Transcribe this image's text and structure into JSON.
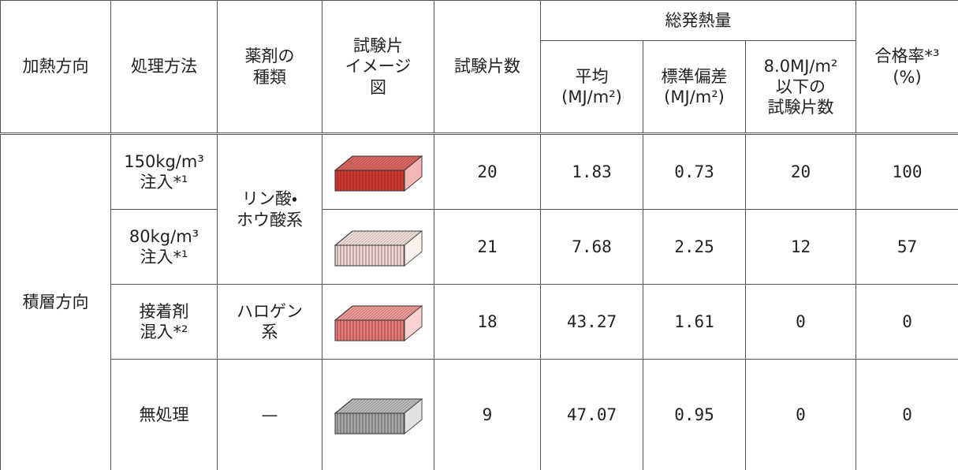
{
  "table": {
    "header": {
      "heating_direction": "加熱方向",
      "method": "処理方法",
      "agent": [
        "薬剤の",
        "種類"
      ],
      "image": [
        "試験片",
        "イメージ",
        "図"
      ],
      "count": "試験片数",
      "total_heat": "総発熱量",
      "mean": [
        "平均",
        "(MJ/m²)"
      ],
      "sd": [
        "標準偏差",
        "(MJ/m²)"
      ],
      "under": [
        "8.0MJ/m²",
        "以下の",
        "試験片数"
      ],
      "pass_rate": [
        "合格率*³",
        "(%)"
      ]
    },
    "direction": "積層方向",
    "agents": [
      [
        "リン酸・",
        "ホウ酸系"
      ],
      [
        "ハロゲン",
        "系"
      ],
      "—"
    ],
    "rows": [
      {
        "method": [
          "150kg/m³",
          "注入*¹"
        ],
        "count": 20,
        "mean": 1.83,
        "sd": 0.73,
        "under": 20,
        "pass": 100
      },
      {
        "method": [
          "80kg/m³",
          "注入*¹"
        ],
        "count": 21,
        "mean": 7.68,
        "sd": 2.25,
        "under": 12,
        "pass": 57
      },
      {
        "method": [
          "接着剤",
          "混入*²"
        ],
        "count": 18,
        "mean": 43.27,
        "sd": 1.61,
        "under": 0,
        "pass": 0
      },
      {
        "method": "無処理",
        "count": 9,
        "mean": 47.07,
        "sd": 0.95,
        "under": 0,
        "pass": 0
      }
    ]
  }
}
